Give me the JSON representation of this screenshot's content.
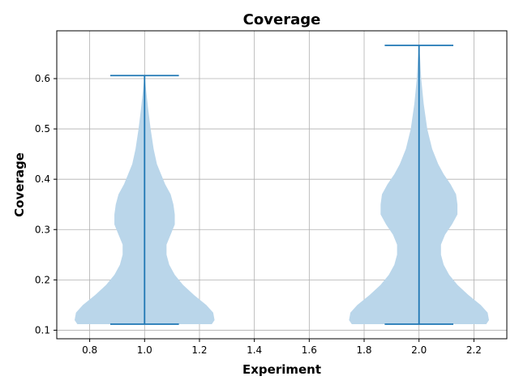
{
  "chart_data": {
    "type": "violin",
    "title": "Coverage",
    "xlabel": "Experiment",
    "ylabel": "Coverage",
    "xlim": [
      0.68,
      2.32
    ],
    "ylim": [
      0.083,
      0.695
    ],
    "xticks": [
      0.8,
      1.0,
      1.2,
      1.4,
      1.6,
      1.8,
      2.0,
      2.2
    ],
    "xtick_labels": [
      "0.8",
      "1.0",
      "1.2",
      "1.4",
      "1.6",
      "1.8",
      "2.0",
      "2.2"
    ],
    "yticks": [
      0.1,
      0.2,
      0.3,
      0.4,
      0.5,
      0.6
    ],
    "ytick_labels": [
      "0.1",
      "0.2",
      "0.3",
      "0.4",
      "0.5",
      "0.6"
    ],
    "grid": true,
    "violin_fill_color": "#bad6ea",
    "line_color": "#1f77b4",
    "violins": [
      {
        "position": 1.0,
        "min": 0.112,
        "max": 0.606,
        "cap_halfwidth": 0.125,
        "density": [
          [
            0.112,
            0.245
          ],
          [
            0.12,
            0.255
          ],
          [
            0.135,
            0.25
          ],
          [
            0.15,
            0.225
          ],
          [
            0.17,
            0.18
          ],
          [
            0.19,
            0.14
          ],
          [
            0.21,
            0.11
          ],
          [
            0.23,
            0.09
          ],
          [
            0.25,
            0.08
          ],
          [
            0.27,
            0.08
          ],
          [
            0.29,
            0.095
          ],
          [
            0.31,
            0.11
          ],
          [
            0.33,
            0.11
          ],
          [
            0.35,
            0.105
          ],
          [
            0.37,
            0.095
          ],
          [
            0.39,
            0.075
          ],
          [
            0.41,
            0.06
          ],
          [
            0.43,
            0.045
          ],
          [
            0.46,
            0.033
          ],
          [
            0.5,
            0.022
          ],
          [
            0.54,
            0.013
          ],
          [
            0.57,
            0.007
          ],
          [
            0.606,
            0.0
          ]
        ]
      },
      {
        "position": 2.0,
        "min": 0.112,
        "max": 0.666,
        "cap_halfwidth": 0.125,
        "density": [
          [
            0.112,
            0.245
          ],
          [
            0.12,
            0.255
          ],
          [
            0.135,
            0.25
          ],
          [
            0.15,
            0.225
          ],
          [
            0.17,
            0.18
          ],
          [
            0.19,
            0.14
          ],
          [
            0.21,
            0.11
          ],
          [
            0.23,
            0.09
          ],
          [
            0.25,
            0.08
          ],
          [
            0.27,
            0.08
          ],
          [
            0.29,
            0.095
          ],
          [
            0.31,
            0.12
          ],
          [
            0.33,
            0.14
          ],
          [
            0.35,
            0.14
          ],
          [
            0.37,
            0.135
          ],
          [
            0.39,
            0.115
          ],
          [
            0.41,
            0.09
          ],
          [
            0.43,
            0.07
          ],
          [
            0.46,
            0.048
          ],
          [
            0.5,
            0.03
          ],
          [
            0.55,
            0.017
          ],
          [
            0.6,
            0.008
          ],
          [
            0.64,
            0.004
          ],
          [
            0.666,
            0.0
          ]
        ]
      }
    ]
  }
}
